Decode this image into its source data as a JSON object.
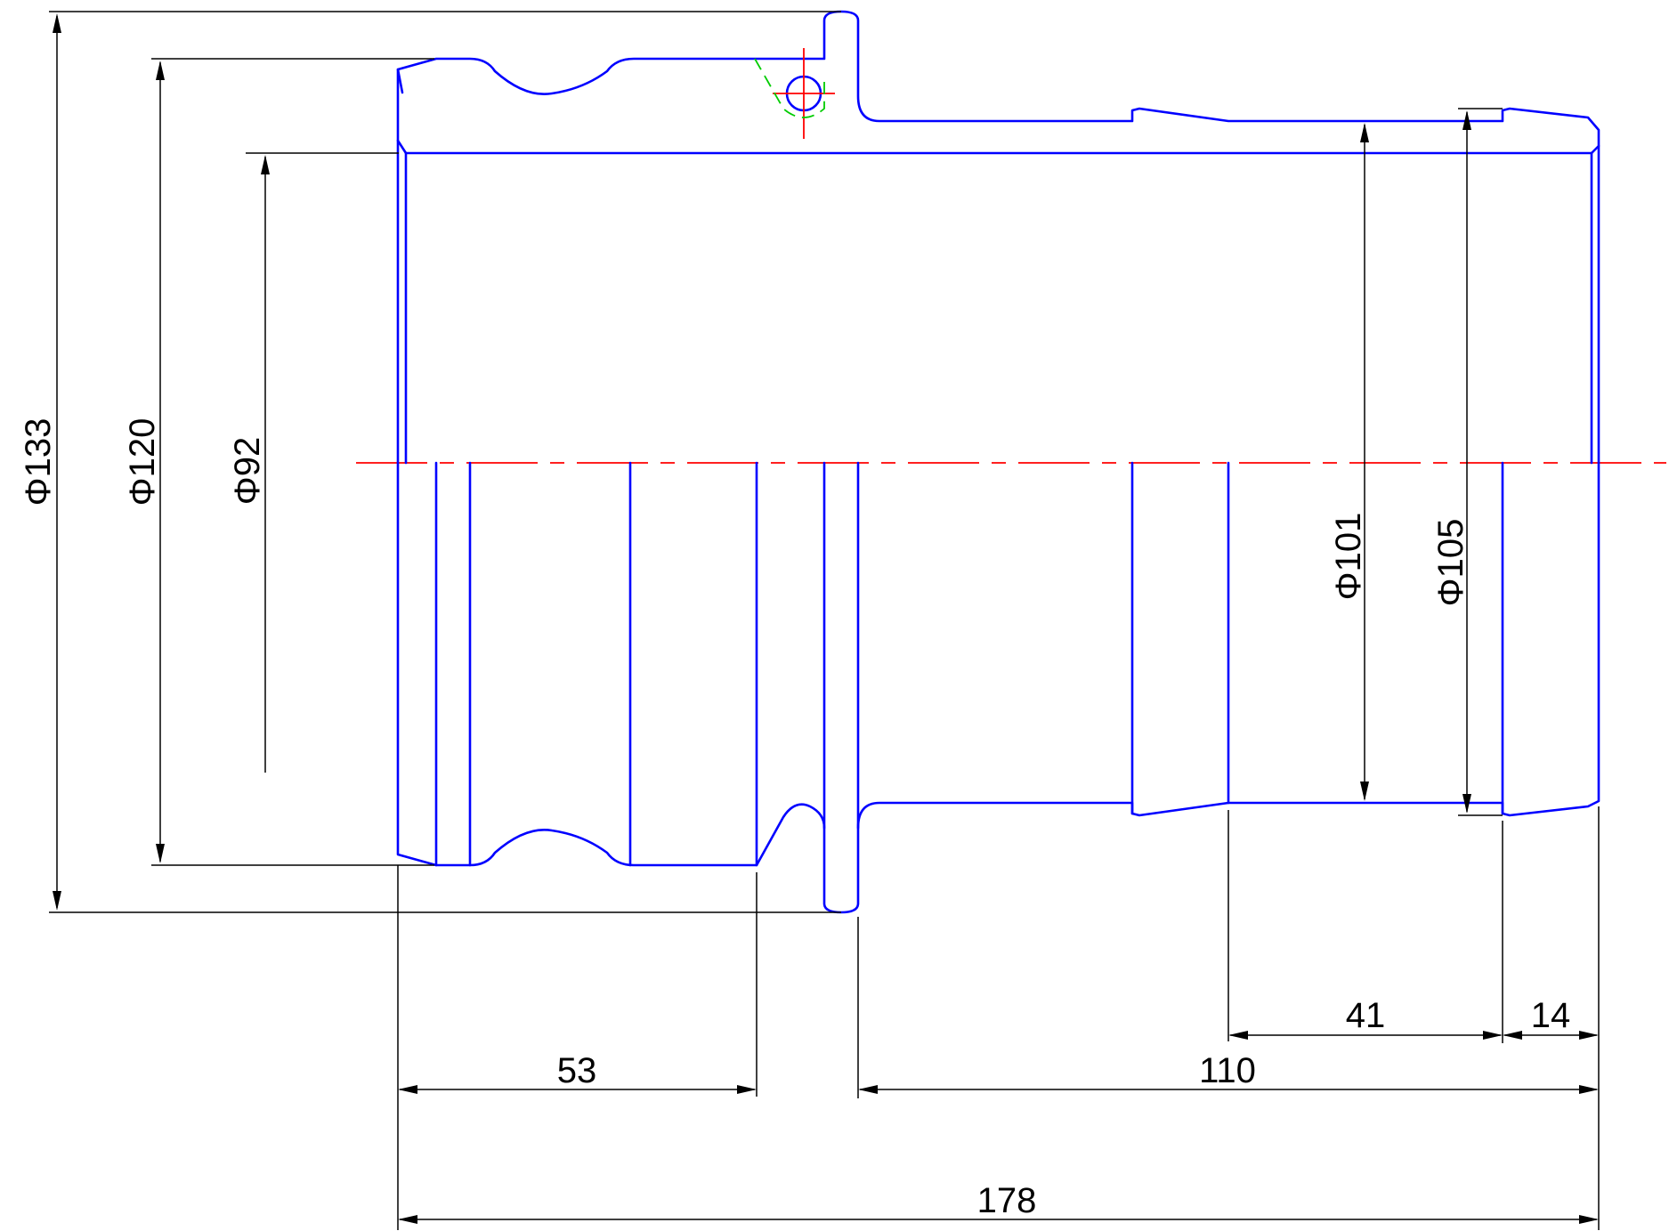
{
  "colors": {
    "outline": "#0000ff",
    "dimension": "#000000",
    "centerline": "#ff0000",
    "hidden_line": "#00cc00",
    "background": "#ffffff"
  },
  "diameters": {
    "d133": "Φ133",
    "d120": "Φ120",
    "d92": "Φ92",
    "d101": "Φ101",
    "d105": "Φ105"
  },
  "lengths": {
    "l53": "53",
    "l110": "110",
    "l41": "41",
    "l14": "14",
    "l178": "178"
  }
}
